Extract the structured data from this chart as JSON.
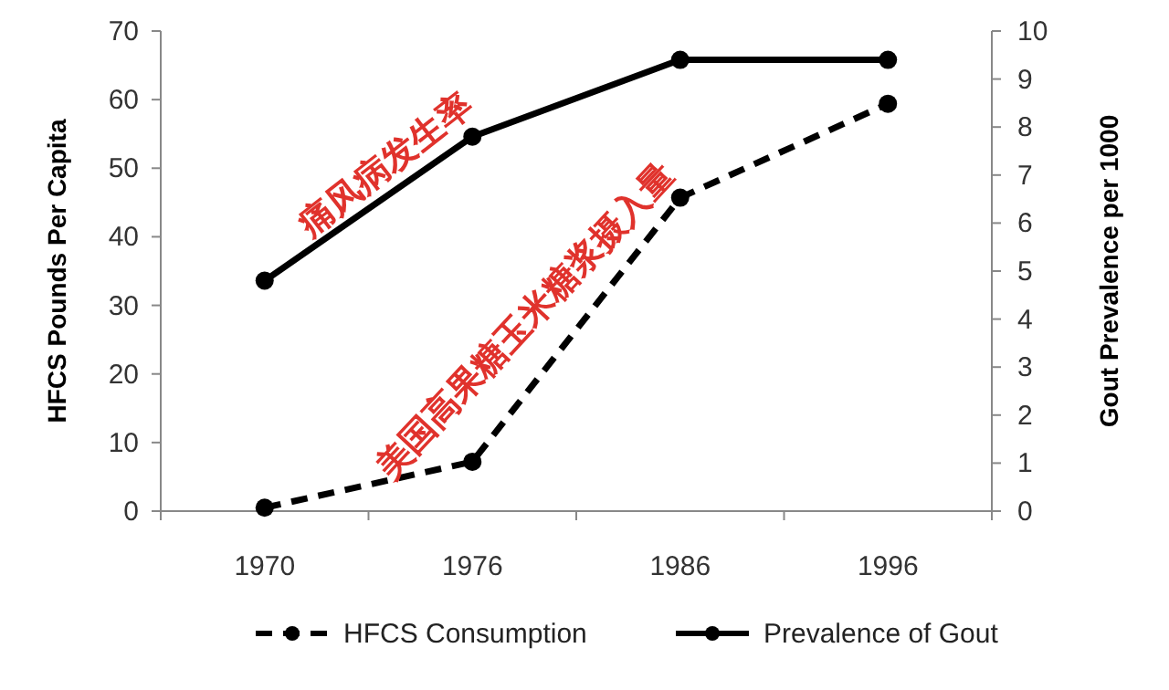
{
  "chart_data": {
    "type": "line",
    "xlabel": null,
    "ylabel": "HFCS Pounds Per Capita",
    "y2label": "Gout Prevalence per 1000",
    "categories": [
      "1970",
      "1976",
      "1986",
      "1996"
    ],
    "series": [
      {
        "name": "HFCS Consumption",
        "color": "#000000",
        "values": [
          0.5,
          7.2,
          45.7,
          59.4
        ],
        "line_style": "dashed"
      },
      {
        "name": "Prevalence of Gout",
        "color": "#000000",
        "values": [
          4.8,
          7.8,
          9.4,
          9.4
        ],
        "axis": "y2",
        "line_style": "solid"
      }
    ],
    "ylim": [
      0,
      70
    ],
    "yticks": [
      0,
      10,
      20,
      30,
      40,
      50,
      60,
      70
    ],
    "y2lim": [
      0,
      10
    ],
    "y2ticks": [
      0,
      1,
      2,
      3,
      4,
      5,
      6,
      7,
      8,
      9,
      10
    ],
    "marker": "circle",
    "grid": false,
    "legend": "bottom",
    "annotations": [
      "痛风病发生率",
      "美国高果糖玉米糖浆摄入量"
    ]
  }
}
